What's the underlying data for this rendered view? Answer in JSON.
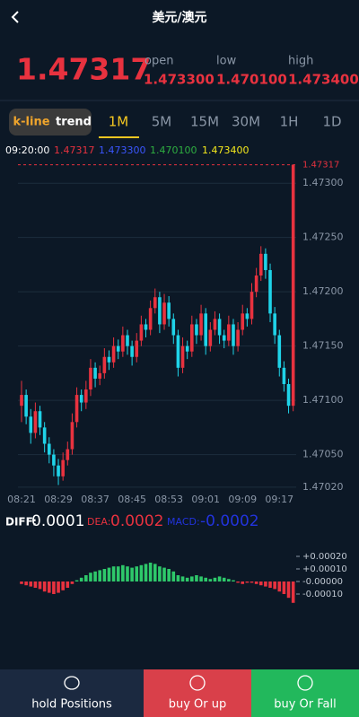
{
  "header": {
    "title": "美元/澳元"
  },
  "quote": {
    "price": "1.47317",
    "open_label": "open",
    "open": "1.473300",
    "low_label": "low",
    "low": "1.470100",
    "high_label": "high",
    "high": "1.473400"
  },
  "tabs": [
    "k-line",
    "trend",
    "1M",
    "5M",
    "15M",
    "30M",
    "1H",
    "1D"
  ],
  "info": {
    "time": "09:20:00"
  },
  "chart_data": [
    {
      "type": "candlestick",
      "x": [
        "08:21",
        null,
        null,
        null,
        null,
        null,
        null,
        null,
        "08:29",
        null,
        null,
        null,
        null,
        null,
        null,
        null,
        "08:37",
        null,
        null,
        null,
        null,
        null,
        null,
        null,
        "08:45",
        null,
        null,
        null,
        null,
        null,
        null,
        null,
        "08:53",
        null,
        null,
        null,
        null,
        null,
        null,
        null,
        "09:01",
        null,
        null,
        null,
        null,
        null,
        null,
        null,
        "09:09",
        null,
        null,
        null,
        null,
        null,
        null,
        null,
        "09:17",
        null,
        null,
        null
      ],
      "candles": [
        [
          1.47095,
          1.47118,
          1.4708,
          1.47105
        ],
        [
          1.47105,
          1.4711,
          1.47078,
          1.47085
        ],
        [
          1.47085,
          1.47092,
          1.4706,
          1.4707
        ],
        [
          1.4707,
          1.47098,
          1.47065,
          1.4709
        ],
        [
          1.4709,
          1.47095,
          1.47068,
          1.47075
        ],
        [
          1.47075,
          1.4708,
          1.47052,
          1.4706
        ],
        [
          1.4706,
          1.47066,
          1.47042,
          1.4705
        ],
        [
          1.4705,
          1.47055,
          1.4703,
          1.4704
        ],
        [
          1.4704,
          1.47046,
          1.47022,
          1.4703
        ],
        [
          1.4703,
          1.47052,
          1.47026,
          1.47045
        ],
        [
          1.47045,
          1.47062,
          1.4704,
          1.47055
        ],
        [
          1.47055,
          1.47088,
          1.4705,
          1.4708
        ],
        [
          1.4708,
          1.47112,
          1.47075,
          1.47105
        ],
        [
          1.47105,
          1.4711,
          1.4709,
          1.47098
        ],
        [
          1.47098,
          1.47118,
          1.47092,
          1.4711
        ],
        [
          1.4711,
          1.47138,
          1.47104,
          1.4713
        ],
        [
          1.4713,
          1.47135,
          1.47112,
          1.4712
        ],
        [
          1.4712,
          1.47132,
          1.47114,
          1.47125
        ],
        [
          1.47125,
          1.47148,
          1.4712,
          1.4714
        ],
        [
          1.4714,
          1.47146,
          1.47128,
          1.47135
        ],
        [
          1.47135,
          1.47158,
          1.4713,
          1.4715
        ],
        [
          1.4715,
          1.47156,
          1.47138,
          1.47145
        ],
        [
          1.47145,
          1.47168,
          1.4714,
          1.4716
        ],
        [
          1.4716,
          1.47165,
          1.47142,
          1.4715
        ],
        [
          1.4715,
          1.47155,
          1.47132,
          1.4714
        ],
        [
          1.4714,
          1.47162,
          1.47135,
          1.47155
        ],
        [
          1.47155,
          1.47178,
          1.4715,
          1.4717
        ],
        [
          1.4717,
          1.47175,
          1.47158,
          1.47165
        ],
        [
          1.47165,
          1.47192,
          1.4716,
          1.47185
        ],
        [
          1.47185,
          1.47203,
          1.4718,
          1.47195
        ],
        [
          1.47195,
          1.472,
          1.47162,
          1.4717
        ],
        [
          1.4717,
          1.47198,
          1.47165,
          1.4719
        ],
        [
          1.4719,
          1.47196,
          1.47168,
          1.47175
        ],
        [
          1.47175,
          1.4718,
          1.47152,
          1.4716
        ],
        [
          1.4716,
          1.47165,
          1.47122,
          1.4713
        ],
        [
          1.4713,
          1.47158,
          1.47125,
          1.4715
        ],
        [
          1.4715,
          1.47155,
          1.47138,
          1.47145
        ],
        [
          1.47145,
          1.47178,
          1.4714,
          1.4717
        ],
        [
          1.4717,
          1.47175,
          1.47152,
          1.4716
        ],
        [
          1.4716,
          1.47188,
          1.47155,
          1.4718
        ],
        [
          1.4718,
          1.47185,
          1.47142,
          1.4715
        ],
        [
          1.4715,
          1.47172,
          1.47145,
          1.47165
        ],
        [
          1.47165,
          1.47182,
          1.4716,
          1.47175
        ],
        [
          1.47175,
          1.4718,
          1.47152,
          1.4716
        ],
        [
          1.4716,
          1.47165,
          1.47148,
          1.47155
        ],
        [
          1.47155,
          1.47178,
          1.4715,
          1.4717
        ],
        [
          1.4717,
          1.47175,
          1.47142,
          1.4715
        ],
        [
          1.4715,
          1.47172,
          1.47145,
          1.47165
        ],
        [
          1.47165,
          1.47188,
          1.4716,
          1.4718
        ],
        [
          1.4718,
          1.47185,
          1.47168,
          1.47175
        ],
        [
          1.47175,
          1.47208,
          1.4717,
          1.472
        ],
        [
          1.472,
          1.47222,
          1.47195,
          1.47215
        ],
        [
          1.47215,
          1.47242,
          1.4721,
          1.47235
        ],
        [
          1.47235,
          1.4724,
          1.47212,
          1.4722
        ],
        [
          1.4722,
          1.47226,
          1.47172,
          1.4718
        ],
        [
          1.4718,
          1.47186,
          1.47152,
          1.4716
        ],
        [
          1.4716,
          1.47165,
          1.47122,
          1.4713
        ],
        [
          1.4713,
          1.47136,
          1.47108,
          1.47115
        ],
        [
          1.47115,
          1.4712,
          1.47088,
          1.47095
        ],
        [
          1.47095,
          1.47317,
          1.4709,
          1.47317
        ]
      ],
      "up_color": "#e8323f",
      "down_color": "#1fd3e8",
      "ylim": [
        1.4701,
        1.4732
      ],
      "yticks": [
        {
          "value": 1.473,
          "label": "1.47300"
        },
        {
          "value": 1.4725,
          "label": "1.47250"
        },
        {
          "value": 1.472,
          "label": "1.47200"
        },
        {
          "value": 1.4715,
          "label": "1.47150"
        },
        {
          "value": 1.471,
          "label": "1.47100"
        },
        {
          "value": 1.4705,
          "label": "1.47050"
        },
        {
          "value": 1.4702,
          "label": "1.47020"
        }
      ],
      "last_price": {
        "value": 1.47317,
        "label": "1.47317"
      },
      "grid": true
    },
    {
      "type": "bar",
      "values": [
        -2e-05,
        -3e-05,
        -4e-05,
        -5e-05,
        -6e-05,
        -8e-05,
        -9e-05,
        -0.0001,
        -9e-05,
        -7e-05,
        -5e-05,
        -2e-05,
        1e-05,
        3e-05,
        5e-05,
        7e-05,
        8e-05,
        9e-05,
        0.0001,
        0.00011,
        0.00012,
        0.00012,
        0.00013,
        0.00012,
        0.00011,
        0.00012,
        0.00013,
        0.00014,
        0.00015,
        0.00014,
        0.00012,
        0.00011,
        0.0001,
        8e-05,
        5e-05,
        4e-05,
        3e-05,
        4e-05,
        5e-05,
        4e-05,
        3e-05,
        2e-05,
        3e-05,
        4e-05,
        3e-05,
        2e-05,
        1e-05,
        -1e-05,
        -2e-05,
        -1e-05,
        -1e-05,
        -2e-05,
        -3e-05,
        -4e-05,
        -5e-05,
        -6e-05,
        -8e-05,
        -0.0001,
        -0.00013,
        -0.00017
      ],
      "positive_color": "#2ec86a",
      "negative_color": "#e8323f",
      "ylim": [
        -0.0002,
        0.0003
      ],
      "yticks": [
        {
          "value": 0.0002,
          "label": "+0.00020"
        },
        {
          "value": 0.0001,
          "label": "+0.00010"
        },
        {
          "value": 0,
          "label": "-0.00000"
        },
        {
          "value": -0.0001,
          "label": "-0.00010"
        }
      ]
    }
  ],
  "macd_labels": {
    "diff": "DIFF:",
    "diff_value": "0.0001",
    "dea": "DEA:",
    "dea_value": "0.0002",
    "macd": "MACD:",
    "macd_value": "-0.0002"
  },
  "footer": [
    "hold Positions",
    "buy Or up",
    "buy Or Fall"
  ]
}
